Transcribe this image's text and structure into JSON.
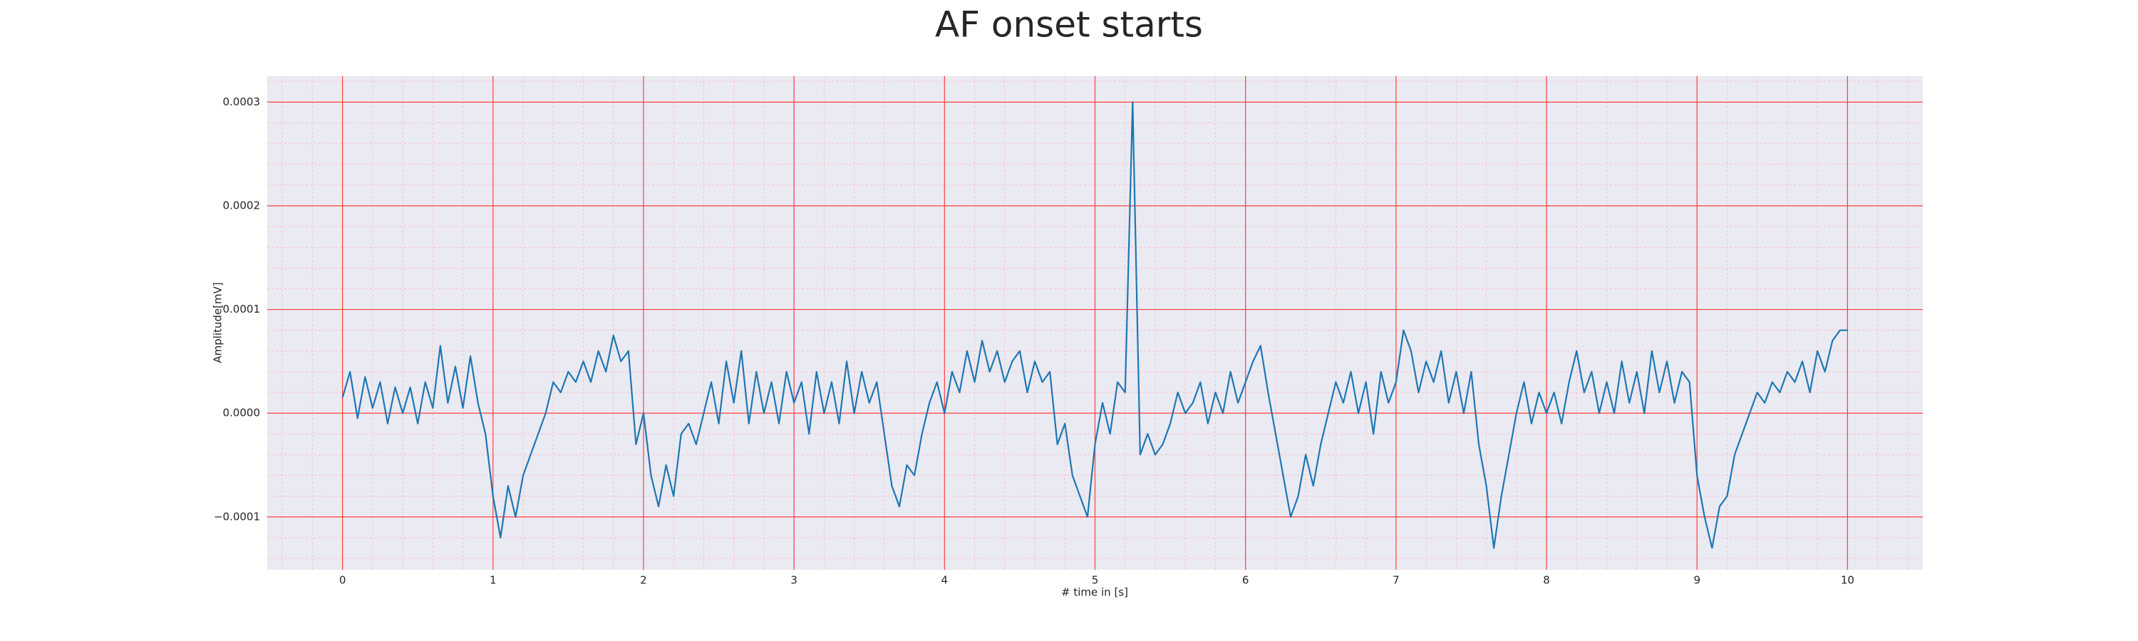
{
  "chart_data": {
    "type": "line",
    "title": "AF onset starts",
    "xlabel": "# time in [s]",
    "ylabel": "Amplitude[mV]",
    "color": "#1f77b4",
    "grid": true,
    "minor_grid": true,
    "xlim": [
      -0.5,
      10.5
    ],
    "ylim": [
      -0.000151,
      0.000325
    ],
    "xticks": [
      0,
      1,
      2,
      3,
      4,
      5,
      6,
      7,
      8,
      9,
      10
    ],
    "yticks": [
      {
        "value": -0.0001,
        "label": "−0.0001"
      },
      {
        "value": 0,
        "label": "0.0000"
      },
      {
        "value": 0.0001,
        "label": "0.0001"
      },
      {
        "value": 0.0002,
        "label": "0.0002"
      },
      {
        "value": 0.0003,
        "label": "0.0003"
      }
    ],
    "x": [
      0,
      0.05,
      0.1,
      0.15,
      0.2,
      0.25,
      0.3,
      0.35,
      0.4,
      0.45,
      0.5,
      0.55,
      0.6,
      0.65,
      0.7,
      0.75,
      0.8,
      0.85,
      0.9,
      0.95,
      1,
      1.05,
      1.1,
      1.15,
      1.2,
      1.25,
      1.3,
      1.35,
      1.4,
      1.45,
      1.5,
      1.55,
      1.6,
      1.65,
      1.7,
      1.75,
      1.8,
      1.85,
      1.9,
      1.95,
      2,
      2.05,
      2.1,
      2.15,
      2.2,
      2.25,
      2.3,
      2.35,
      2.4,
      2.45,
      2.5,
      2.55,
      2.6,
      2.65,
      2.7,
      2.75,
      2.8,
      2.85,
      2.9,
      2.95,
      3,
      3.05,
      3.1,
      3.15,
      3.2,
      3.25,
      3.3,
      3.35,
      3.4,
      3.45,
      3.5,
      3.55,
      3.6,
      3.65,
      3.7,
      3.75,
      3.8,
      3.85,
      3.9,
      3.95,
      4,
      4.05,
      4.1,
      4.15,
      4.2,
      4.25,
      4.3,
      4.35,
      4.4,
      4.45,
      4.5,
      4.55,
      4.6,
      4.65,
      4.7,
      4.75,
      4.8,
      4.85,
      4.9,
      4.95,
      5,
      5.05,
      5.1,
      5.15,
      5.2,
      5.25,
      5.3,
      5.35,
      5.4,
      5.45,
      5.5,
      5.55,
      5.6,
      5.65,
      5.7,
      5.75,
      5.8,
      5.85,
      5.9,
      5.95,
      6,
      6.05,
      6.1,
      6.15,
      6.2,
      6.25,
      6.3,
      6.35,
      6.4,
      6.45,
      6.5,
      6.55,
      6.6,
      6.65,
      6.7,
      6.75,
      6.8,
      6.85,
      6.9,
      6.95,
      7,
      7.05,
      7.1,
      7.15,
      7.2,
      7.25,
      7.3,
      7.35,
      7.4,
      7.45,
      7.5,
      7.55,
      7.6,
      7.65,
      7.7,
      7.75,
      7.8,
      7.85,
      7.9,
      7.95,
      8,
      8.05,
      8.1,
      8.15,
      8.2,
      8.25,
      8.3,
      8.35,
      8.4,
      8.45,
      8.5,
      8.55,
      8.6,
      8.65,
      8.7,
      8.75,
      8.8,
      8.85,
      8.9,
      8.95,
      9,
      9.05,
      9.1,
      9.15,
      9.2,
      9.25,
      9.3,
      9.35,
      9.4,
      9.45,
      9.5,
      9.55,
      9.6,
      9.65,
      9.7,
      9.75,
      9.8,
      9.85,
      9.9,
      9.95,
      10
    ],
    "values": [
      1.5e-05,
      4e-05,
      -5e-06,
      3.5e-05,
      5e-06,
      3e-05,
      -1e-05,
      2.5e-05,
      0,
      2.5e-05,
      -1e-05,
      3e-05,
      5e-06,
      6.5e-05,
      1e-05,
      4.5e-05,
      5e-06,
      5.5e-05,
      1e-05,
      -2e-05,
      -8e-05,
      -0.00012,
      -7e-05,
      -0.0001,
      -6e-05,
      -4e-05,
      -2e-05,
      0,
      3e-05,
      2e-05,
      4e-05,
      3e-05,
      5e-05,
      3e-05,
      6e-05,
      4e-05,
      7.5e-05,
      5e-05,
      6e-05,
      -3e-05,
      0,
      -6e-05,
      -9e-05,
      -5e-05,
      -8e-05,
      -2e-05,
      -1e-05,
      -3e-05,
      0,
      3e-05,
      -1e-05,
      5e-05,
      1e-05,
      6e-05,
      -1e-05,
      4e-05,
      0,
      3e-05,
      -1e-05,
      4e-05,
      1e-05,
      3e-05,
      -2e-05,
      4e-05,
      0,
      3e-05,
      -1e-05,
      5e-05,
      0,
      4e-05,
      1e-05,
      3e-05,
      -2e-05,
      -7e-05,
      -9e-05,
      -5e-05,
      -6e-05,
      -2e-05,
      1e-05,
      3e-05,
      0,
      4e-05,
      2e-05,
      6e-05,
      3e-05,
      7e-05,
      4e-05,
      6e-05,
      3e-05,
      5e-05,
      6e-05,
      2e-05,
      5e-05,
      3e-05,
      4e-05,
      -3e-05,
      -1e-05,
      -6e-05,
      -8e-05,
      -0.0001,
      -3e-05,
      1e-05,
      -2e-05,
      3e-05,
      2e-05,
      0.0003,
      -4e-05,
      -2e-05,
      -4e-05,
      -3e-05,
      -1e-05,
      2e-05,
      0,
      1e-05,
      3e-05,
      -1e-05,
      2e-05,
      0,
      4e-05,
      1e-05,
      3e-05,
      5e-05,
      6.5e-05,
      2e-05,
      -2e-05,
      -6e-05,
      -0.0001,
      -8e-05,
      -4e-05,
      -7e-05,
      -3e-05,
      0,
      3e-05,
      1e-05,
      4e-05,
      0,
      3e-05,
      -2e-05,
      4e-05,
      1e-05,
      3e-05,
      8e-05,
      6e-05,
      2e-05,
      5e-05,
      3e-05,
      6e-05,
      1e-05,
      4e-05,
      0,
      4e-05,
      -3e-05,
      -7e-05,
      -0.00013,
      -8e-05,
      -4e-05,
      0,
      3e-05,
      -1e-05,
      2e-05,
      0,
      2e-05,
      -1e-05,
      3e-05,
      6e-05,
      2e-05,
      4e-05,
      0,
      3e-05,
      0,
      5e-05,
      1e-05,
      4e-05,
      0,
      6e-05,
      2e-05,
      5e-05,
      1e-05,
      4e-05,
      3e-05,
      -6e-05,
      -0.0001,
      -0.00013,
      -9e-05,
      -8e-05,
      -4e-05,
      -2e-05,
      0,
      2e-05,
      1e-05,
      3e-05,
      2e-05,
      4e-05,
      3e-05,
      5e-05,
      2e-05,
      6e-05,
      4e-05,
      7e-05,
      8e-05,
      8e-05
    ]
  }
}
